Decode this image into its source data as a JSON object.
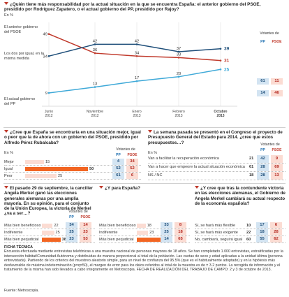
{
  "q1": {
    "question": "¿Quién tiene más responsabilidad por la actual situación en la que se encuentra España: el anterior gobierno del PSOE, presidido por Rodríguez Zapatero, o el actual gobierno del PP, presidido por Rajoy?",
    "unit": "En %",
    "votantes": "Votantes de",
    "pp": "PP",
    "psoe": "PSOE",
    "series_labels": [
      "El anterior gobierno del PSOE",
      "Los dos por igual, en la misma medida",
      "El actual gobierno del PP"
    ],
    "party_values": [
      [
        61,
        11
      ],
      [
        14,
        46
      ]
    ]
  },
  "q2": {
    "question": "¿Cree que España se encontraría en una situación mejor, igual o peor que la de ahora con un gobierno del PSOE, presidido por Alfredo Pérez Rubalcaba?",
    "unit": "En %",
    "votantes": "Votantes de",
    "pp": "PP",
    "psoe": "PSOE",
    "rows": [
      {
        "label": "Mejor",
        "value": 15,
        "pp": 4,
        "psoe": 34
      },
      {
        "label": "Igual",
        "value": 50,
        "pp": 52,
        "psoe": 52
      },
      {
        "label": "Peor",
        "value": 25,
        "pp": 61,
        "psoe": 6
      }
    ]
  },
  "q3": {
    "question": "La semana pasada se presentó en el Congreso el proyecto de Presupuesto General del Estado para 2014. ¿cree que estos presupuestos…?",
    "unit": "En %",
    "votantes": "Votantes de",
    "pp": "PP",
    "psoe": "PSOE",
    "rows": [
      {
        "label": "Van a facilitar la recuperación económica",
        "value": 21,
        "pp": 42,
        "psoe": 9
      },
      {
        "label": "Van a hacer que empeore la actual situación económica",
        "value": 61,
        "pp": 28,
        "psoe": 69
      },
      {
        "label": "NS / NC",
        "value": 18,
        "pp": 28,
        "psoe": 13
      }
    ]
  },
  "q4": {
    "question": "El pasado 29 de septiembre, la canciller Angela Merkel ganó las elecciones generales alemanas por una amplia mayoría. En su opinión, para el conjunto de la Unión Europea, la victoria de Merkel ¿va a ser…?",
    "unit": "En %",
    "votantes": "Votantes de",
    "pp": "PP",
    "psoe": "PSOE",
    "rows": [
      {
        "label": "Más bien beneficioso",
        "value": 22,
        "pp": 34,
        "psoe": 14
      },
      {
        "label": "Indiferente",
        "value": 25,
        "pp": 25,
        "psoe": 23
      },
      {
        "label": "Más bien perjudicial",
        "value": 38,
        "pp": 23,
        "psoe": 53
      }
    ]
  },
  "q5": {
    "question": "¿Y para España?",
    "unit": "En %",
    "rows": [
      {
        "label": "Más bien beneficioso",
        "value": 18,
        "pp": 33,
        "psoe": 8
      },
      {
        "label": "Indiferente",
        "value": 23,
        "pp": 25,
        "psoe": 18
      },
      {
        "label": "Más bien perjudicial",
        "value": 49,
        "pp": 14,
        "psoe": 65
      }
    ]
  },
  "q6": {
    "question": "¿Y cree que tras la contundente victoria en las elecciones alemanas, el Gobierno de Angela Merkel cambiará su actual respecto de la economía española?",
    "unit": "En %",
    "rows": [
      {
        "label": "Sí, se hará más flexible",
        "value": 10,
        "pp": 17,
        "psoe": 6
      },
      {
        "label": "Sí, se hará más exigente",
        "value": 22,
        "pp": 18,
        "psoe": 28
      },
      {
        "label": "No, cambiará, seguirá igual",
        "value": 60,
        "pp": 55,
        "psoe": 62
      }
    ]
  },
  "ficha": {
    "title": "FICHA TÉCNICA",
    "text": "Encuesta efectuada mediante entrevistas telefónicas a una muestra nacional de personas mayores de 18 años. Se han completado 1.000 entrevistas, estratificadas por la intersección hábitat/Comunidad Autónoma y distribuidas de manera proporcional al total de la población. Las cuotas de sexo y edad aplicadas a la unidad última (persona entrevistada). Partiendo de los criterios del muestreo aleatorio simple, para un nivel de confianza del 95.5% (que es el habitualmente adoptado) y en la hipótesis más desfavorable de máxima indeterminación (p=q=50), el margen de error para los datos referidos al total de la muestra es de ± 3.2 puntos. La recogida de información y el tratamiento de la misma han sido llevados a cabo íntegramente en Metroscopia. FECHA DE REALIZACIÓN DEL TRABAJO DE CAMPO: 2 y 3 de octubre de 2013.",
    "source": "Fuente: Metroscopia."
  },
  "chart_data": [
    {
      "type": "line",
      "categories": [
        "Junio 2012",
        "Noviembre 2012",
        "Enero 2013",
        "Febrero 2013",
        "Octubre 2013"
      ],
      "ylim": [
        0,
        55
      ],
      "series": [
        {
          "name": "El anterior gobierno del PSOE",
          "color": "#c0392b",
          "values": [
            49,
            36,
            34,
            33,
            31
          ]
        },
        {
          "name": "Los dos por igual, en la misma medida",
          "color": "#1e4e79",
          "values": [
            34,
            42,
            42,
            37,
            39
          ]
        },
        {
          "name": "El actual gobierno del PP",
          "color": "#3fa9d8",
          "values": [
            9,
            13,
            17,
            20,
            25
          ]
        }
      ]
    },
    {
      "type": "bar",
      "categories": [
        "Mejor",
        "Igual",
        "Peor"
      ],
      "values": [
        15,
        50,
        25
      ],
      "xlim": [
        0,
        100
      ]
    },
    {
      "type": "bar",
      "categories": [
        "Van a facilitar la recuperación económica",
        "Van a hacer que empeore la actual situación económica",
        "NS / NC"
      ],
      "values": [
        21,
        61,
        18
      ]
    },
    {
      "type": "bar",
      "categories": [
        "Más bien beneficioso",
        "Indiferente",
        "Más bien perjudicial"
      ],
      "values": [
        22,
        25,
        38
      ],
      "xlim": [
        0,
        100
      ]
    },
    {
      "type": "bar",
      "categories": [
        "Más bien beneficioso",
        "Indiferente",
        "Más bien perjudicial"
      ],
      "values": [
        18,
        23,
        49
      ],
      "xlim": [
        0,
        100
      ]
    },
    {
      "type": "bar",
      "categories": [
        "Sí, se hará más flexible",
        "Sí, se hará más exigente",
        "No, cambiará, seguirá igual"
      ],
      "values": [
        10,
        22,
        60
      ]
    }
  ],
  "colors": {
    "pp": "#1e6fb0",
    "psoe": "#c0392b",
    "highlight": "#f26522",
    "bar": "#fbdcd3",
    "pp_box": "#d3e4f2",
    "psoe_box": "#fbdcd3"
  }
}
